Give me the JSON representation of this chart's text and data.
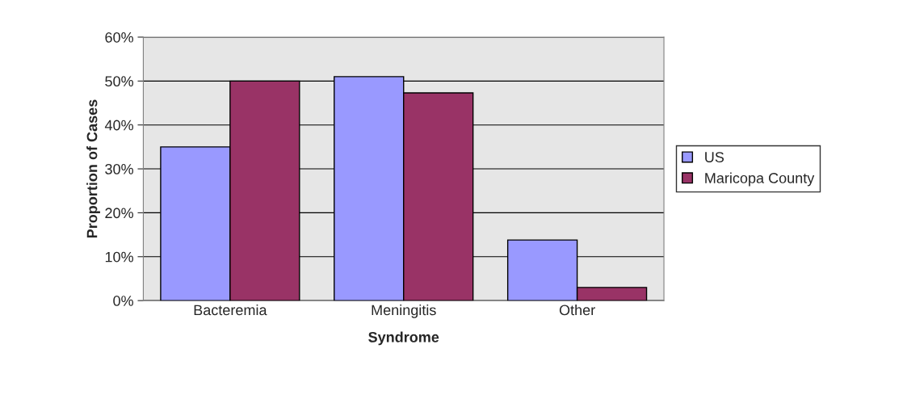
{
  "chart_data": {
    "type": "bar",
    "xlabel": "Syndrome",
    "ylabel": "Proportion of Cases",
    "categories": [
      "Bacteremia",
      "Meningitis",
      "Other"
    ],
    "series": [
      {
        "name": "US",
        "color": "#9999ff",
        "values": [
          35,
          51,
          13.8
        ]
      },
      {
        "name": "Maricopa County",
        "color": "#993366",
        "values": [
          50,
          47.3,
          3
        ]
      }
    ],
    "ylim": [
      0,
      60
    ],
    "yticks": [
      {
        "value": 0,
        "label": "0%"
      },
      {
        "value": 10,
        "label": "10%"
      },
      {
        "value": 20,
        "label": "20%"
      },
      {
        "value": 30,
        "label": "30%"
      },
      {
        "value": 40,
        "label": "40%"
      },
      {
        "value": 50,
        "label": "50%"
      },
      {
        "value": 60,
        "label": "60%"
      }
    ],
    "grid": "y",
    "legend": "right"
  }
}
